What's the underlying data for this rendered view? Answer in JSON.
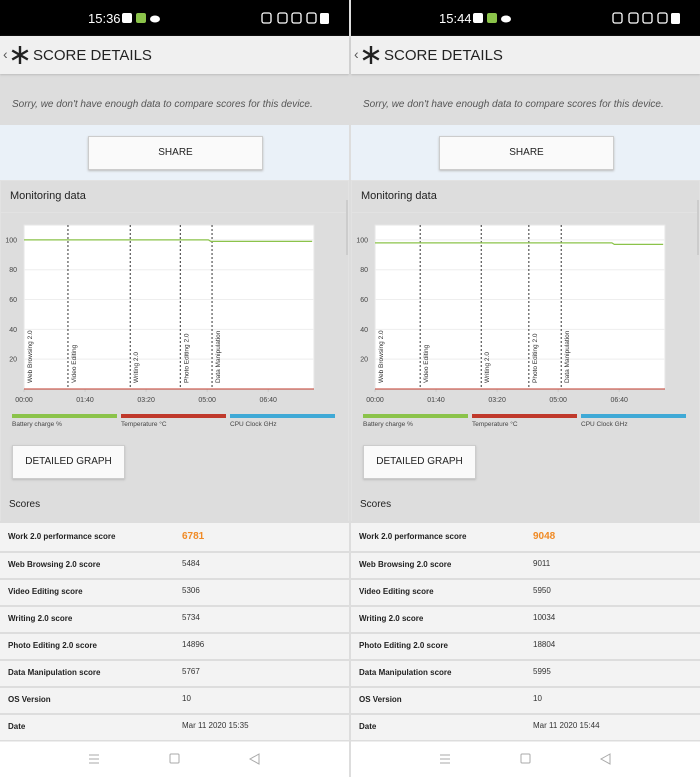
{
  "panels": [
    {
      "status_time": "15:36",
      "header_title": "SCORE DETAILS",
      "notice": "Sorry, we don't have enough data to compare scores for this device.",
      "share_button": "SHARE",
      "monitoring_title": "Monitoring data",
      "chart": {
        "type": "line",
        "xlim": [
          0,
          475
        ],
        "ylim": [
          0,
          110
        ],
        "yticks": [
          20,
          40,
          60,
          80,
          100
        ],
        "xticks": [
          {
            "value": 0,
            "label": "00:00"
          },
          {
            "value": 100,
            "label": "01:40"
          },
          {
            "value": 200,
            "label": "03:20"
          },
          {
            "value": 300,
            "label": "05:00"
          },
          {
            "value": 400,
            "label": "06:40"
          }
        ],
        "markers": [
          {
            "x": 0,
            "label": "Web Browsing 2.0"
          },
          {
            "x": 72,
            "label": "Video Editing"
          },
          {
            "x": 174,
            "label": "Writing 2.0"
          },
          {
            "x": 256,
            "label": "Photo Editing 2.0"
          },
          {
            "x": 308,
            "label": "Data Manipulation"
          }
        ],
        "series": [
          {
            "name": "Battery charge %",
            "color": "#8bc34a",
            "x": [
              0,
              302,
              306,
              472
            ],
            "values": [
              100,
              100,
              99,
              99
            ]
          },
          {
            "name": "Temperature °C",
            "color": "#c0392b"
          },
          {
            "name": "CPU Clock GHz",
            "color": "#3fa9d6"
          }
        ]
      },
      "detailed_button": "DETAILED GRAPH",
      "scores_title": "Scores",
      "scores": [
        {
          "label": "Work 2.0 performance score",
          "value": 6781
        },
        {
          "label": "Web Browsing 2.0 score",
          "value": 5484
        },
        {
          "label": "Video Editing score",
          "value": 5306
        },
        {
          "label": "Writing 2.0 score",
          "value": 5734
        },
        {
          "label": "Photo Editing 2.0 score",
          "value": 14896
        },
        {
          "label": "Data Manipulation score",
          "value": 5767
        },
        {
          "label": "OS Version",
          "value": 10
        },
        {
          "label": "Date",
          "value": "Mar 11 2020 15:35"
        }
      ]
    },
    {
      "status_time": "15:44",
      "header_title": "SCORE DETAILS",
      "notice": "Sorry, we don't have enough data to compare scores for this device.",
      "share_button": "SHARE",
      "monitoring_title": "Monitoring data",
      "chart": {
        "type": "line",
        "xlim": [
          0,
          475
        ],
        "ylim": [
          0,
          110
        ],
        "yticks": [
          20,
          40,
          60,
          80,
          100
        ],
        "xticks": [
          {
            "value": 0,
            "label": "00:00"
          },
          {
            "value": 100,
            "label": "01:40"
          },
          {
            "value": 200,
            "label": "03:20"
          },
          {
            "value": 300,
            "label": "05:00"
          },
          {
            "value": 400,
            "label": "06:40"
          }
        ],
        "markers": [
          {
            "x": 0,
            "label": "Web Browsing 2.0"
          },
          {
            "x": 74,
            "label": "Video Editing"
          },
          {
            "x": 174,
            "label": "Writing 2.0"
          },
          {
            "x": 252,
            "label": "Photo Editing 2.0"
          },
          {
            "x": 305,
            "label": "Data Manipulation"
          }
        ],
        "series": [
          {
            "name": "Battery charge %",
            "color": "#8bc34a",
            "x": [
              0,
              388,
              392,
              472
            ],
            "values": [
              98,
              98,
              97,
              97
            ]
          },
          {
            "name": "Temperature °C",
            "color": "#c0392b"
          },
          {
            "name": "CPU Clock GHz",
            "color": "#3fa9d6"
          }
        ]
      },
      "detailed_button": "DETAILED GRAPH",
      "scores_title": "Scores",
      "scores": [
        {
          "label": "Work 2.0 performance score",
          "value": 9048
        },
        {
          "label": "Web Browsing 2.0 score",
          "value": 9011
        },
        {
          "label": "Video Editing score",
          "value": 5950
        },
        {
          "label": "Writing 2.0 score",
          "value": 10034
        },
        {
          "label": "Photo Editing 2.0 score",
          "value": 18804
        },
        {
          "label": "Data Manipulation score",
          "value": 5995
        },
        {
          "label": "OS Version",
          "value": 10
        },
        {
          "label": "Date",
          "value": "Mar 11 2020 15:44"
        }
      ]
    }
  ]
}
